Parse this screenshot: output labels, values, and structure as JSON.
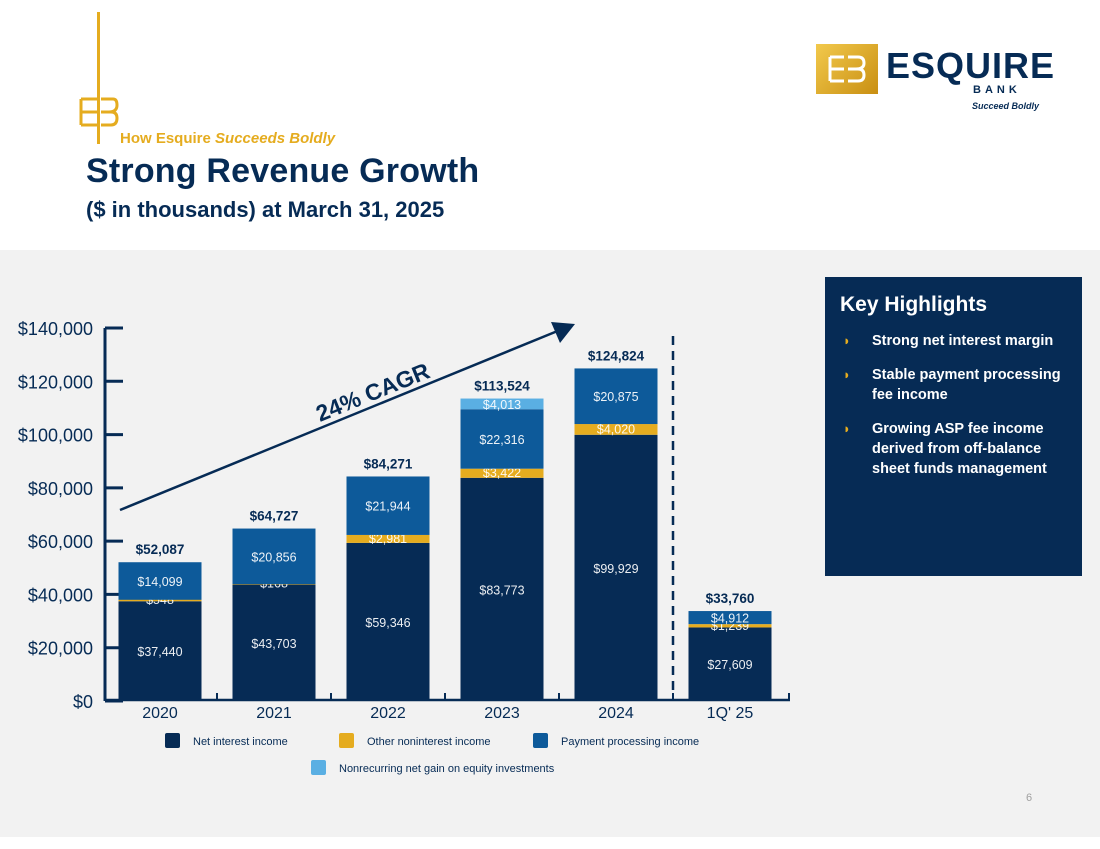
{
  "header": {
    "kicker_prefix": "How Esquire",
    "kicker_italic": "Succeeds Boldly",
    "title": "Strong Revenue Growth",
    "subtitle": "($ in thousands) at March 31, 2025"
  },
  "logo": {
    "word": "ESQUIRE",
    "sub": "BANK",
    "tagline": "Succeed Boldly"
  },
  "highlights": {
    "title": "Key Highlights",
    "items": [
      "Strong net interest margin",
      "Stable payment processing fee income",
      "Growing ASP fee income derived from off-balance sheet funds management"
    ]
  },
  "page_number": "6",
  "colors": {
    "navy": "#062b55",
    "gold": "#e5ac1f",
    "blue": "#0d5a9a",
    "light_blue": "#5aafe3",
    "band": "#f2f2f2"
  },
  "chart_data": {
    "type": "bar",
    "stacked": true,
    "categories": [
      "2020",
      "2021",
      "2022",
      "2023",
      "2024",
      "1Q' 25"
    ],
    "series": [
      {
        "name": "Net interest income",
        "color": "#062b55",
        "values": [
          37440,
          43703,
          59346,
          83773,
          99929,
          27609
        ],
        "labels": [
          "$37,440",
          "$43,703",
          "$59,346",
          "$83,773",
          "$99,929",
          "$27,609"
        ]
      },
      {
        "name": "Other noninterest income",
        "color": "#e5ac1f",
        "values": [
          548,
          168,
          2981,
          3422,
          4020,
          1239
        ],
        "labels": [
          "$548",
          "$168",
          "$2,981",
          "$3,422",
          "$4,020",
          "$1,239"
        ]
      },
      {
        "name": "Payment processing income",
        "color": "#0d5a9a",
        "values": [
          14099,
          20856,
          21944,
          22316,
          20875,
          4912
        ],
        "labels": [
          "$14,099",
          "$20,856",
          "$21,944",
          "$22,316",
          "$20,875",
          "$4,912"
        ]
      },
      {
        "name": "Nonrecurring net gain on equity investments",
        "color": "#5aafe3",
        "values": [
          0,
          0,
          0,
          4013,
          0,
          0
        ],
        "labels": [
          "",
          "",
          "",
          "$4,013",
          "",
          ""
        ]
      }
    ],
    "totals": [
      "$52,087",
      "$64,727",
      "$84,271",
      "$113,524",
      "$124,824",
      "$33,760"
    ],
    "ylim": [
      0,
      140000
    ],
    "yticks": [
      0,
      20000,
      40000,
      60000,
      80000,
      100000,
      120000,
      140000
    ],
    "ytick_labels": [
      "$0",
      "$20,000",
      "$40,000",
      "$60,000",
      "$80,000",
      "$100,000",
      "$120,000",
      "$140,000"
    ],
    "annotation": "24% CAGR",
    "xlabel": "",
    "ylabel": ""
  }
}
